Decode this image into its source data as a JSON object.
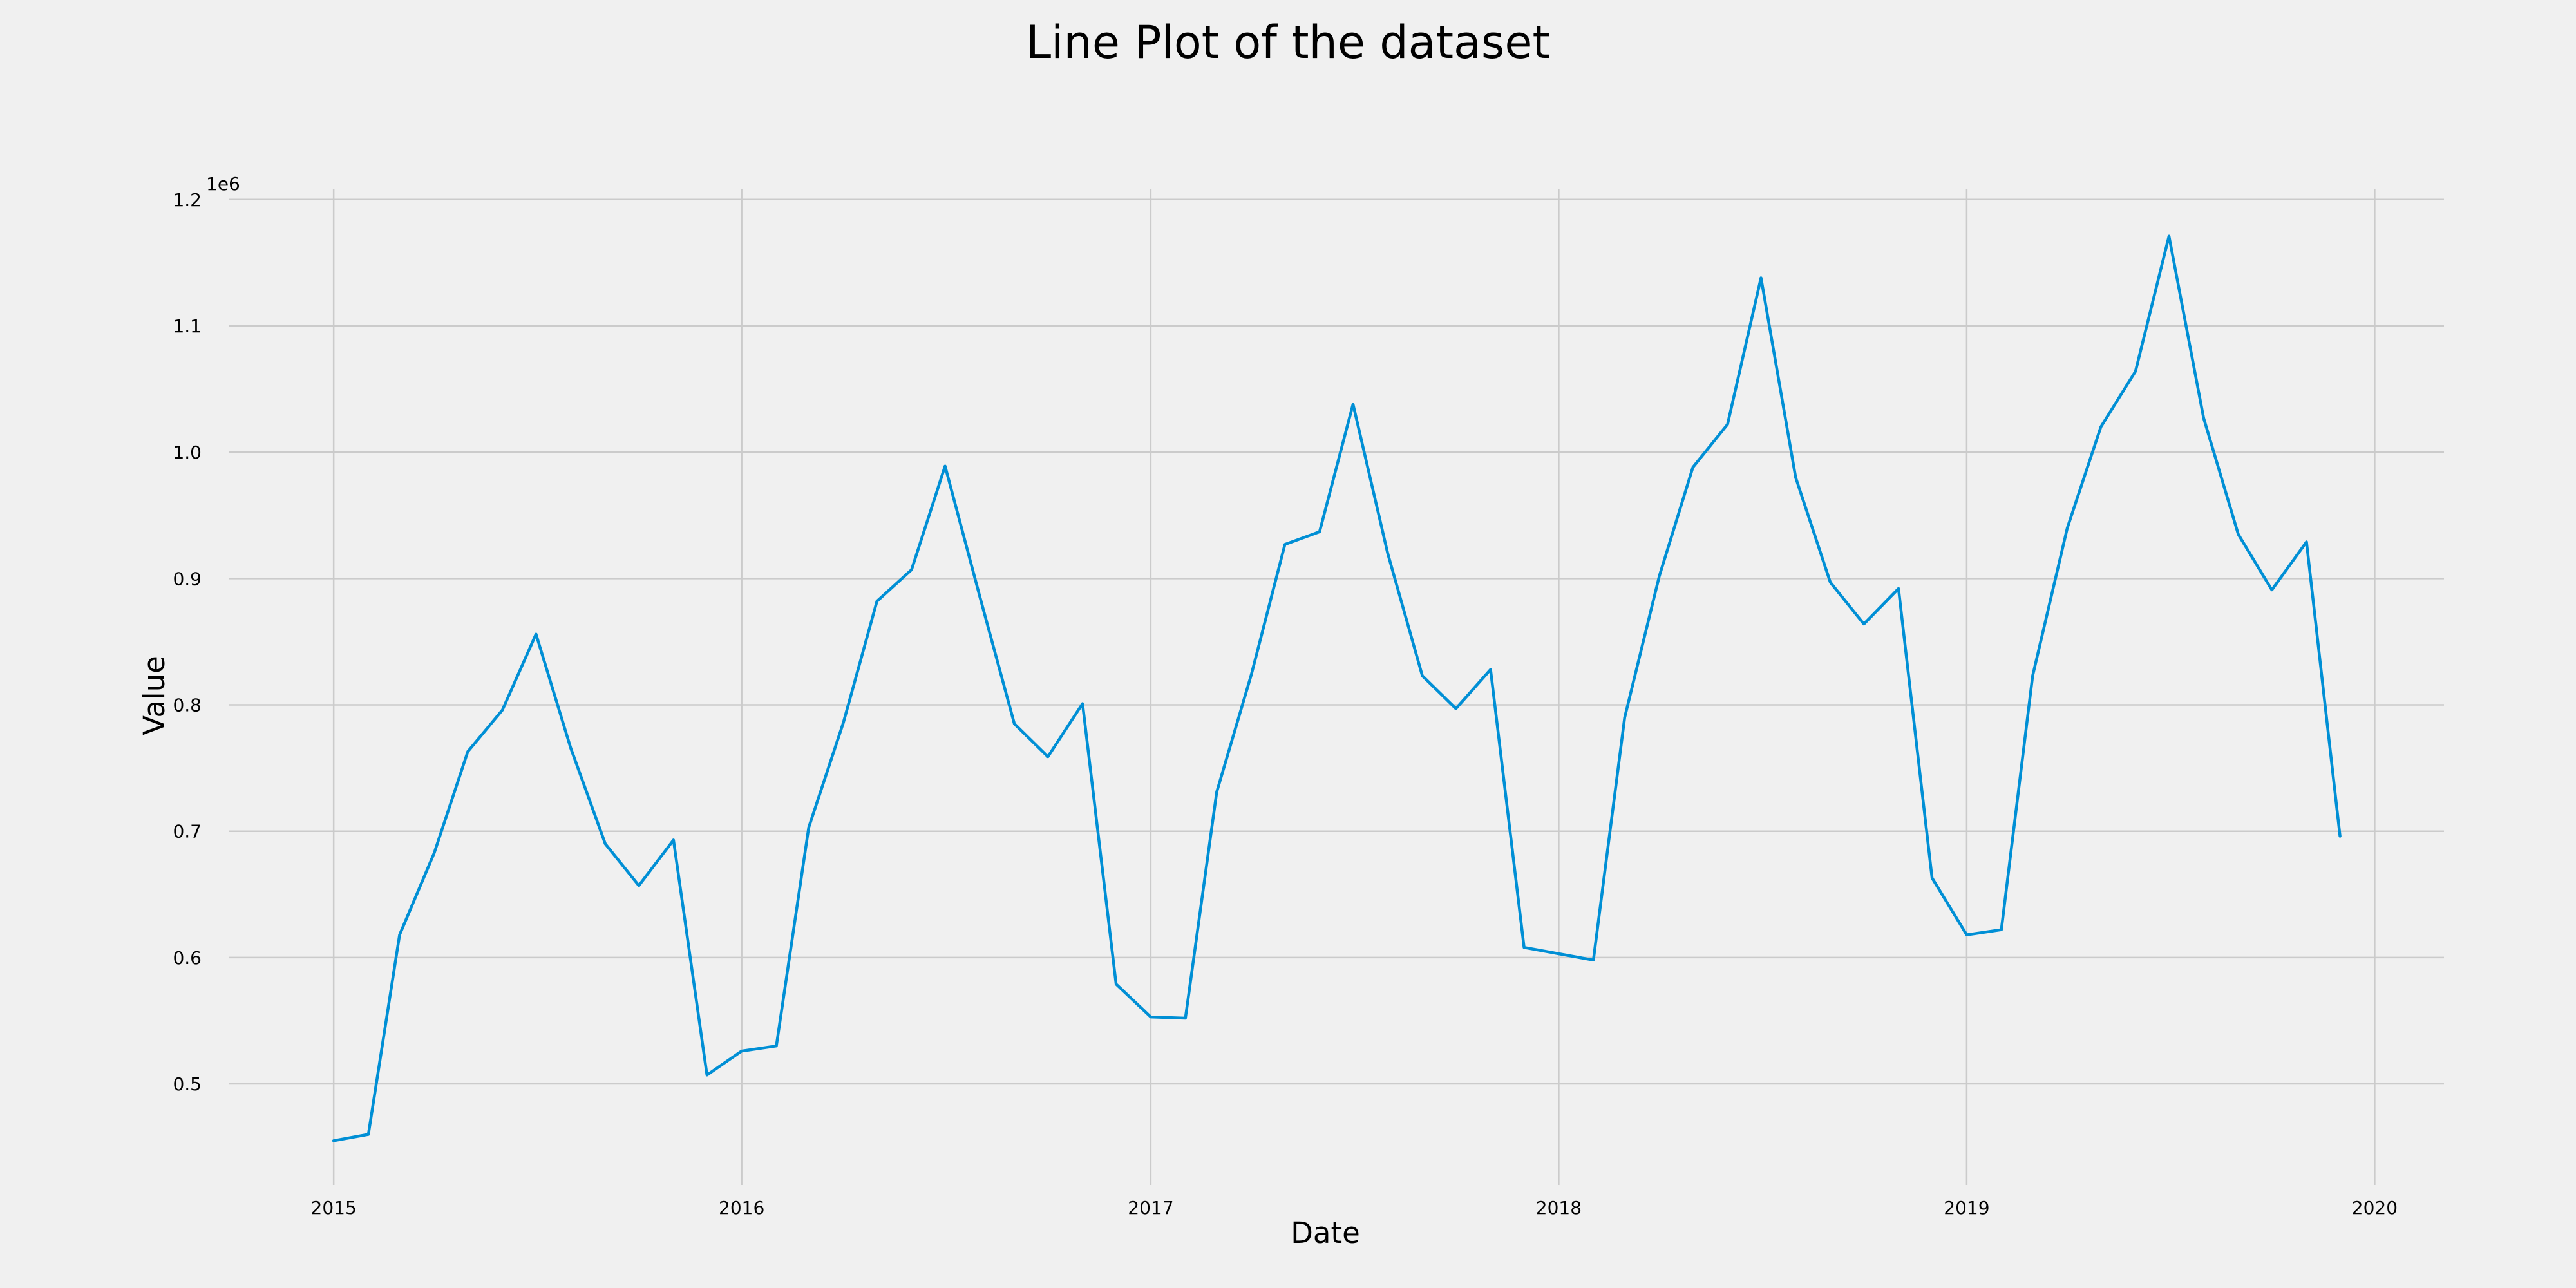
{
  "chart_data": {
    "type": "line",
    "title": "Line Plot of the dataset",
    "xlabel": "Date",
    "ylabel": "Value",
    "y_offset_label": "1e6",
    "xlim": [
      "2014-09-29",
      "2020-03-03"
    ],
    "ylim": [
      0.42,
      1.205
    ],
    "x_ticks": [
      "2015",
      "2016",
      "2017",
      "2018",
      "2019",
      "2020"
    ],
    "y_ticks": [
      "0.5",
      "0.6",
      "0.7",
      "0.8",
      "0.9",
      "1.0",
      "1.1",
      "1.2"
    ],
    "grid": true,
    "color": "#008fd5",
    "series": [
      {
        "x": [
          "2015-01",
          "2015-02",
          "2015-03",
          "2015-04",
          "2015-05",
          "2015-06",
          "2015-07",
          "2015-08",
          "2015-09",
          "2015-10",
          "2015-11",
          "2015-12",
          "2016-01",
          "2016-02",
          "2016-03",
          "2016-04",
          "2016-05",
          "2016-06",
          "2016-07",
          "2016-08",
          "2016-09",
          "2016-10",
          "2016-11",
          "2016-12",
          "2017-01",
          "2017-02",
          "2017-03",
          "2017-04",
          "2017-05",
          "2017-06",
          "2017-07",
          "2017-08",
          "2017-09",
          "2017-10",
          "2017-11",
          "2017-12",
          "2018-01",
          "2018-02",
          "2018-03",
          "2018-04",
          "2018-05",
          "2018-06",
          "2018-07",
          "2018-08",
          "2018-09",
          "2018-10",
          "2018-11",
          "2018-12",
          "2019-01",
          "2019-02",
          "2019-03",
          "2019-04",
          "2019-05",
          "2019-06",
          "2019-07",
          "2019-08",
          "2019-09",
          "2019-10",
          "2019-11",
          "2019-12"
        ],
        "values": [
          0.455,
          0.46,
          0.618,
          0.683,
          0.763,
          0.796,
          0.856,
          0.766,
          0.69,
          0.657,
          0.693,
          0.507,
          0.526,
          0.53,
          0.703,
          0.786,
          0.882,
          0.907,
          0.989,
          0.886,
          0.785,
          0.759,
          0.801,
          0.579,
          0.553,
          0.552,
          0.731,
          0.824,
          0.927,
          0.937,
          1.038,
          0.92,
          0.823,
          0.797,
          0.828,
          0.608,
          0.603,
          0.598,
          0.79,
          0.902,
          0.988,
          1.022,
          1.138,
          0.98,
          0.897,
          0.864,
          0.892,
          0.663,
          0.618,
          0.622,
          0.823,
          0.94,
          1.02,
          1.064,
          1.171,
          1.027,
          0.935,
          0.891,
          0.929,
          0.696
        ]
      }
    ]
  }
}
